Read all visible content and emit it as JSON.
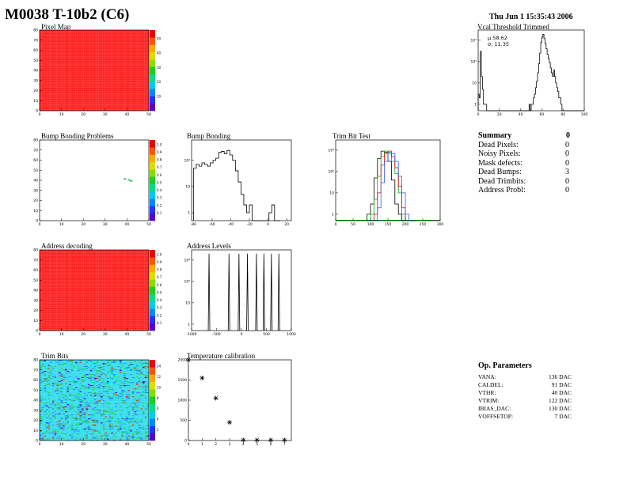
{
  "page": {
    "title": "M0038 T-10b2 (C6)",
    "date": "Thu Jun  1 15:35:43 2006"
  },
  "panels": {
    "pixel_map": {
      "title": "Pixel Map"
    },
    "vcal": {
      "title": "Vcal Threshold Trimmed",
      "mu": "µ:58.62",
      "sigma": "σ: 11.35"
    },
    "bump_problems": {
      "title": "Bump Bonding Problems"
    },
    "bump_bonding": {
      "title": "Bump Bonding"
    },
    "trim_bit_test": {
      "title": "Trim Bit Test"
    },
    "address_decoding": {
      "title": "Address decoding"
    },
    "address_levels": {
      "title": "Address Levels"
    },
    "trim_bits": {
      "title": "Trim Bits"
    },
    "temp_cal": {
      "title": "Temperature calibration"
    }
  },
  "summary": {
    "header": "Summary",
    "header_value": "0",
    "rows": [
      {
        "label": "Dead Pixels:",
        "value": "0"
      },
      {
        "label": "Noisy Pixels:",
        "value": "0"
      },
      {
        "label": "Mask defects:",
        "value": "0"
      },
      {
        "label": "Dead Bumps:",
        "value": "3"
      },
      {
        "label": "Dead Trimbits:",
        "value": "0"
      },
      {
        "label": "Address Probl:",
        "value": "0"
      }
    ]
  },
  "op_parameters": {
    "header": "Op. Parameters",
    "rows": [
      {
        "label": "VANA:",
        "value": "136 DAC"
      },
      {
        "label": "CALDEL:",
        "value": "91 DAC"
      },
      {
        "label": "VTHR:",
        "value": "40 DAC"
      },
      {
        "label": "VTRIM:",
        "value": "122 DAC"
      },
      {
        "label": "IBIAS_DAC:",
        "value": "130 DAC"
      },
      {
        "label": "VOFFSETOP:",
        "value": "7 DAC"
      }
    ]
  },
  "colors": {
    "map_red": "#ff2020",
    "trim_cyan": "#33ddee",
    "green": "#00aa00",
    "red": "#dd0000",
    "blue": "#3355ff"
  },
  "chart_data": [
    {
      "id": "pixel_map",
      "type": "heatmap",
      "title": "Pixel Map",
      "x_ticks": [
        "0",
        "10",
        "20",
        "30",
        "40",
        "50"
      ],
      "y_ticks": [
        "0",
        "10",
        "20",
        "30",
        "40",
        "50",
        "60",
        "70",
        "80"
      ],
      "z_ticks": [
        "10",
        "20",
        "30",
        "40",
        "50"
      ],
      "xlim": [
        0,
        52
      ],
      "ylim": [
        0,
        80
      ],
      "fill": "uniform red"
    },
    {
      "id": "vcal",
      "type": "line",
      "title": "Vcal Threshold Trimmed",
      "x_ticks": [
        "0",
        "20",
        "40",
        "60",
        "80",
        "100"
      ],
      "y_ticks": [
        "1",
        "10",
        "10²",
        "10³"
      ],
      "xlim": [
        0,
        100
      ],
      "ylim_log": [
        0.5,
        3000
      ],
      "log_y": true,
      "x": [
        0,
        1,
        2,
        3,
        4,
        5,
        6,
        7,
        8,
        9,
        10,
        11,
        12,
        13,
        14,
        15,
        16,
        17,
        18,
        19,
        20,
        21,
        22,
        23,
        24,
        25,
        26,
        27,
        28,
        29,
        30,
        31,
        32,
        33,
        34,
        35,
        36,
        37,
        38,
        39,
        40,
        41,
        42,
        43,
        44,
        45,
        46,
        47,
        48,
        49,
        50,
        51,
        52,
        53,
        54,
        55,
        56,
        57,
        58,
        59,
        60,
        61,
        62,
        63,
        64,
        65,
        66,
        67,
        68,
        69,
        70,
        71,
        72,
        73,
        74,
        75,
        76,
        77,
        78,
        79,
        80,
        81,
        82,
        83,
        84,
        85,
        86,
        87,
        88,
        89,
        90,
        91,
        92,
        93,
        94,
        95,
        96,
        97,
        98,
        99
      ],
      "values": [
        3,
        2,
        300,
        20,
        5,
        1,
        1,
        1,
        0,
        0,
        0,
        0,
        0,
        0,
        0,
        0,
        0,
        0,
        0,
        0,
        0,
        0,
        0,
        0,
        0,
        0,
        0,
        0,
        0,
        0,
        0,
        0,
        0,
        0,
        0,
        0,
        0,
        0,
        0,
        0,
        0,
        0,
        0,
        0,
        0,
        0,
        0,
        0,
        1,
        0,
        1,
        1,
        2,
        3,
        6,
        12,
        30,
        80,
        250,
        800,
        1400,
        1900,
        1200,
        700,
        400,
        220,
        140,
        90,
        50,
        30,
        20,
        40,
        20,
        10,
        6,
        4,
        2,
        2,
        1,
        0,
        0,
        0,
        0,
        0,
        0,
        0,
        0,
        0,
        0,
        0,
        0,
        0,
        0,
        0,
        0,
        0,
        0,
        0,
        0,
        0
      ]
    },
    {
      "id": "bump_problems",
      "type": "heatmap",
      "title": "Bump Bonding Problems",
      "x_ticks": [
        "0",
        "10",
        "20",
        "30",
        "40",
        "50"
      ],
      "y_ticks": [
        "0",
        "10",
        "20",
        "30",
        "40",
        "50",
        "60",
        "70",
        "80"
      ],
      "z_ticks": [
        "0.1",
        "0.2",
        "0.3",
        "0.4",
        "0.5",
        "0.6",
        "0.7",
        "0.8",
        "0.9",
        "1.0"
      ],
      "xlim": [
        0,
        52
      ],
      "ylim": [
        0,
        80
      ],
      "cells": [
        {
          "col": 40,
          "row": 41
        },
        {
          "col": 42,
          "row": 40
        },
        {
          "col": 43,
          "row": 39
        }
      ]
    },
    {
      "id": "bump_bonding",
      "type": "line",
      "title": "Bump Bonding",
      "x_ticks": [
        "-80",
        "-60",
        "-40",
        "-20",
        "0",
        "20"
      ],
      "y_ticks": [
        "1",
        "10",
        "10²"
      ],
      "xlim": [
        -82,
        25
      ],
      "log_y": true,
      "x": [
        -80,
        -77,
        -74,
        -71,
        -68,
        -65,
        -62,
        -59,
        -56,
        -53,
        -50,
        -47,
        -44,
        -41,
        -38,
        -35,
        -32,
        -29,
        -26,
        -23,
        -20,
        -17,
        -14,
        -11,
        -8,
        -5,
        -2,
        1,
        4,
        7,
        10
      ],
      "values": [
        50,
        70,
        60,
        80,
        70,
        60,
        80,
        100,
        120,
        200,
        220,
        180,
        240,
        160,
        100,
        40,
        15,
        5,
        2,
        1,
        2,
        0,
        0,
        0,
        0,
        0,
        0,
        1,
        2,
        0,
        0
      ]
    },
    {
      "id": "trim_bit_test",
      "type": "line",
      "title": "Trim Bit Test",
      "x_ticks": [
        "0",
        "50",
        "100",
        "150",
        "200",
        "250",
        "300"
      ],
      "y_ticks": [
        "1",
        "10",
        "10²",
        "10³"
      ],
      "xlim": [
        0,
        300
      ],
      "log_y": true,
      "x": [
        90,
        100,
        110,
        120,
        130,
        140,
        150,
        160,
        170,
        180,
        190,
        200,
        210,
        220
      ],
      "series": [
        {
          "color": "black",
          "values": [
            1,
            3,
            50,
            400,
            900,
            800,
            300,
            40,
            3,
            1,
            0,
            0,
            0,
            0
          ]
        },
        {
          "color": "green",
          "values": [
            0,
            1,
            5,
            60,
            500,
            900,
            700,
            300,
            80,
            10,
            1,
            0,
            0,
            0
          ]
        },
        {
          "color": "red",
          "values": [
            0,
            0,
            1,
            10,
            200,
            700,
            900,
            500,
            150,
            20,
            2,
            0,
            0,
            0
          ]
        },
        {
          "color": "blue",
          "values": [
            0,
            0,
            0,
            2,
            30,
            300,
            800,
            700,
            300,
            60,
            10,
            1,
            0,
            0
          ]
        }
      ]
    },
    {
      "id": "address_decoding",
      "type": "heatmap",
      "title": "Address decoding",
      "x_ticks": [
        "0",
        "10",
        "20",
        "30",
        "40",
        "50"
      ],
      "y_ticks": [
        "0",
        "10",
        "20",
        "30",
        "40",
        "50",
        "60",
        "70",
        "80"
      ],
      "z_ticks": [
        "0.1",
        "0.2",
        "0.3",
        "0.4",
        "0.5",
        "0.6",
        "0.7",
        "0.8",
        "0.9",
        "1.0"
      ],
      "xlim": [
        0,
        52
      ],
      "ylim": [
        0,
        80
      ],
      "fill": "uniform red"
    },
    {
      "id": "address_levels",
      "type": "line",
      "title": "Address Levels",
      "x_ticks": [
        "-1000",
        "-500",
        "0",
        "500",
        "1000"
      ],
      "y_ticks": [
        "1",
        "10",
        "10²",
        "10³"
      ],
      "xlim": [
        -1000,
        1000
      ],
      "log_y": true,
      "peaks": [
        -650,
        -250,
        -50,
        120,
        300,
        450,
        600,
        750
      ],
      "peak_value": 2000
    },
    {
      "id": "trim_bits",
      "type": "heatmap",
      "title": "Trim Bits",
      "x_ticks": [
        "0",
        "10",
        "20",
        "30",
        "40",
        "50"
      ],
      "y_ticks": [
        "0",
        "10",
        "20",
        "30",
        "40",
        "50",
        "60",
        "70",
        "80"
      ],
      "z_ticks": [
        "2",
        "4",
        "6",
        "8",
        "10",
        "12",
        "14"
      ],
      "xlim": [
        0,
        52
      ],
      "ylim": [
        0,
        80
      ],
      "fill": "mostly cyan with green/blue speckle"
    },
    {
      "id": "temp_cal",
      "type": "scatter",
      "title": "Temperature calibration",
      "x_ticks": [
        "0",
        "1",
        "2",
        "3",
        "4",
        "5",
        "6",
        "7"
      ],
      "y_ticks": [
        "0",
        "500",
        "1000",
        "1500",
        "2000"
      ],
      "xlim": [
        0,
        7.5
      ],
      "ylim": [
        0,
        2000
      ],
      "x": [
        0,
        1,
        2,
        3,
        4,
        5,
        6,
        7
      ],
      "values": [
        2000,
        1550,
        1050,
        450,
        10,
        10,
        10,
        10
      ]
    }
  ]
}
